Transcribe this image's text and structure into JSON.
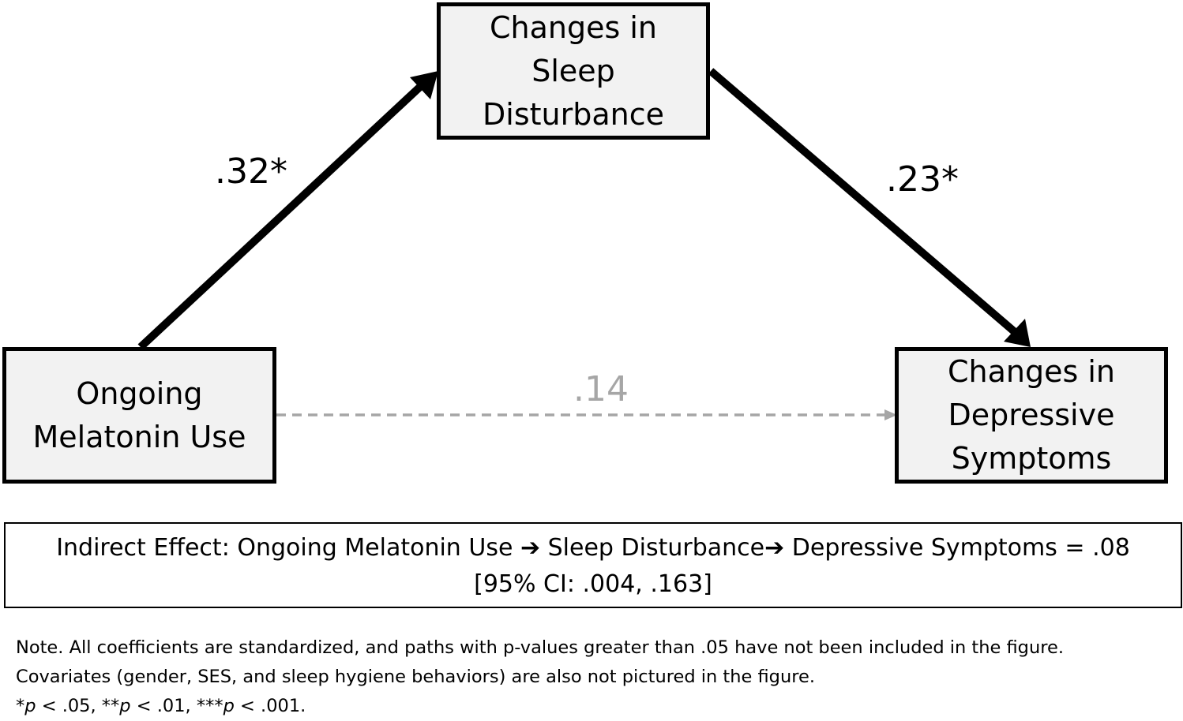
{
  "nodes": {
    "sleep": [
      "Changes in",
      "Sleep",
      "Disturbance"
    ],
    "melatonin": [
      "Ongoing",
      "Melatonin Use"
    ],
    "depressive": [
      "Changes in",
      "Depressive",
      "Symptoms"
    ]
  },
  "paths": {
    "melatonin_to_sleep": ".32*",
    "sleep_to_depressive": ".23*",
    "melatonin_to_depressive": ".14"
  },
  "indirect_effect": {
    "prefix": "Indirect Effect: Ongoing Melatonin Use",
    "arrow_icon": "arrow-right-icon",
    "mediator": "Sleep Disturbance",
    "outcome": "Depressive Symptoms = .08",
    "ci": "[95% CI: .004, .163]"
  },
  "note": {
    "line1": "Note. All coefficients are standardized, and paths with p-values greater than .05 have not been included in the figure.",
    "line2": "Covariates (gender, SES, and sleep hygiene behaviors) are also not pictured in the figure.",
    "sig1_star": "*",
    "sig1_p": "p",
    "sig1_rest": " < .05, ",
    "sig2_star": "**",
    "sig2_p": "p",
    "sig2_rest": " < .01, ",
    "sig3_star": "***",
    "sig3_p": "p",
    "sig3_rest": " < .001."
  },
  "colors": {
    "box_fill": "#f2f2f2",
    "solid_path": "#000000",
    "nonsignificant_path": "#a6a6a6"
  }
}
